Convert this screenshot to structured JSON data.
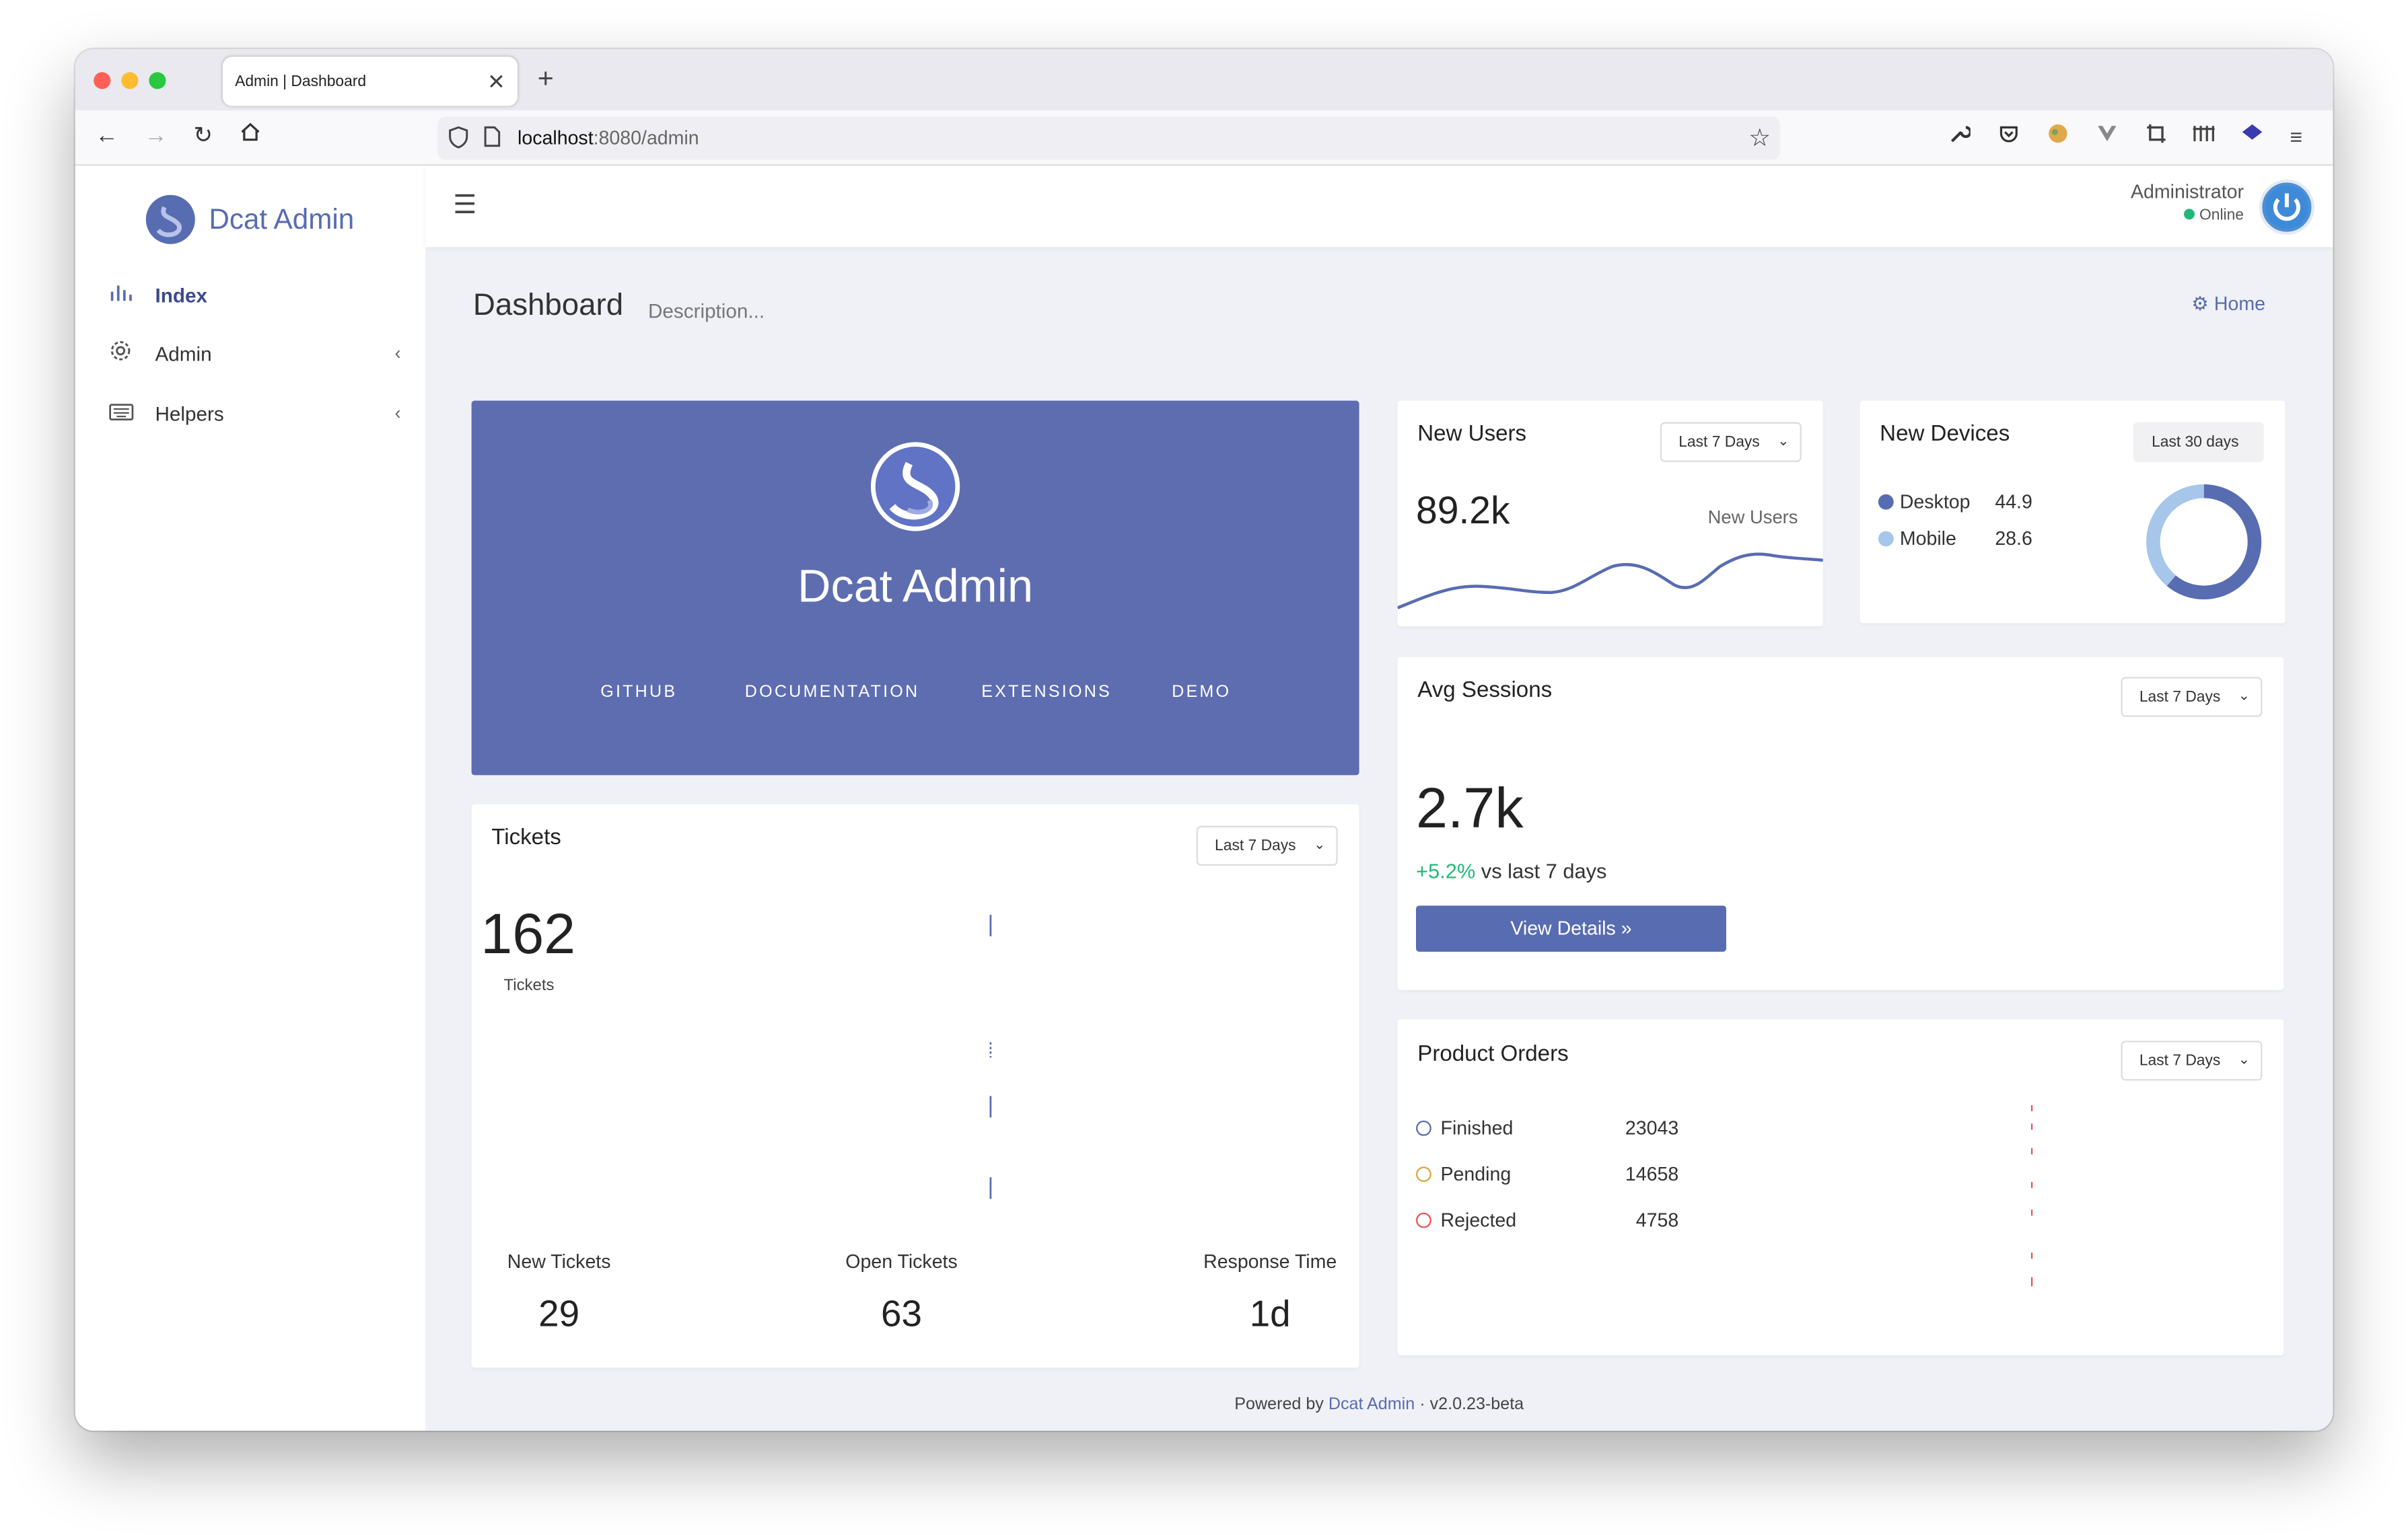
{
  "browser": {
    "tab_title": "Admin | Dashboard",
    "new_tab": "+",
    "url_host": "localhost",
    "url_rest": ":8080/admin"
  },
  "sidebar": {
    "brand": "Dcat Admin",
    "items": [
      {
        "label": "Index",
        "icon": "bar-chart-icon",
        "active": true
      },
      {
        "label": "Admin",
        "icon": "gear-icon"
      },
      {
        "label": "Helpers",
        "icon": "keyboard-icon"
      }
    ]
  },
  "topbar": {
    "user_name": "Administrator",
    "status": "Online",
    "status_color": "#21b978"
  },
  "page": {
    "title": "Dashboard",
    "description": "Description...",
    "home": "Home"
  },
  "hero": {
    "title": "Dcat Admin",
    "links": [
      "GITHUB",
      "DOCUMENTATION",
      "EXTENSIONS",
      "DEMO"
    ],
    "background": "#5e6db0"
  },
  "new_users": {
    "title": "New Users",
    "range": "Last 7 Days",
    "value": "89.2k",
    "series_label": "New Users"
  },
  "new_devices": {
    "title": "New Devices",
    "range": "Last 30 days",
    "items": [
      {
        "label": "Desktop",
        "value": "44.9",
        "color": "#586cb1"
      },
      {
        "label": "Mobile",
        "value": "28.6",
        "color": "#a6c6ea"
      }
    ]
  },
  "avg_sessions": {
    "title": "Avg Sessions",
    "range": "Last 7 Days",
    "value": "2.7k",
    "change": "+5.2%",
    "change_suffix": "vs last 7 days",
    "button": "View Details"
  },
  "tickets": {
    "title": "Tickets",
    "range": "Last 7 Days",
    "value": "162",
    "label": "Tickets",
    "stats": [
      {
        "label": "New Tickets",
        "value": "29"
      },
      {
        "label": "Open Tickets",
        "value": "63"
      },
      {
        "label": "Response Time",
        "value": "1d"
      }
    ]
  },
  "product_orders": {
    "title": "Product Orders",
    "range": "Last 7 Days",
    "items": [
      {
        "label": "Finished",
        "value": "23043",
        "color": "#586cb1"
      },
      {
        "label": "Pending",
        "value": "14658",
        "color": "#dda63d"
      },
      {
        "label": "Rejected",
        "value": "4758",
        "color": "#ea5455"
      }
    ]
  },
  "footer": {
    "prefix": "Powered by",
    "link": "Dcat Admin",
    "sep": "·",
    "version": "v2.0.23-beta"
  }
}
